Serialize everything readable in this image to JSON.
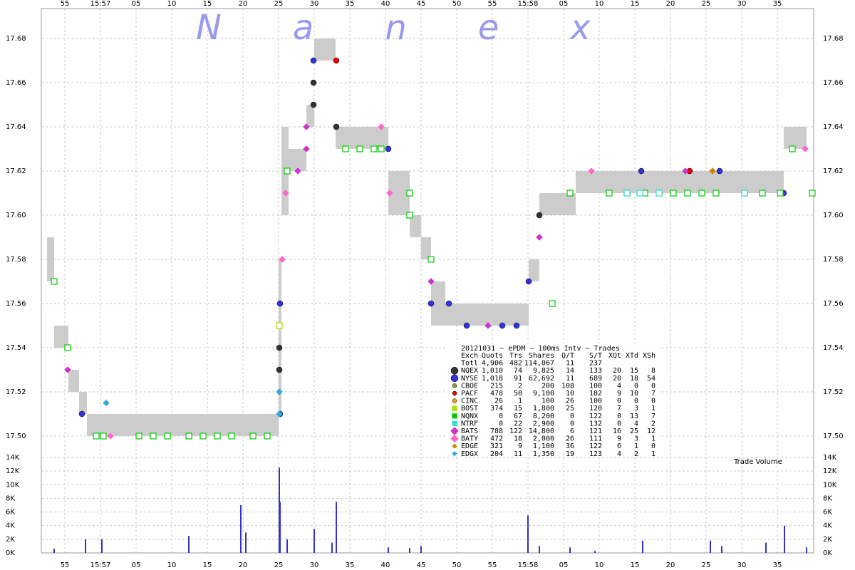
{
  "chart_data": {
    "type": "scatter",
    "title": "Nanex",
    "subtitle": "20121031 ~ ePDM ~ 100ms Intv ~ Trades",
    "annotation": "Trade Volume",
    "grid": true,
    "xlim": [
      51.7,
      160.1
    ],
    "xticks": [
      {
        "value": 55,
        "label": "55"
      },
      {
        "value": 60,
        "label": "15:57"
      },
      {
        "value": 65,
        "label": "05"
      },
      {
        "value": 70,
        "label": "10"
      },
      {
        "value": 75,
        "label": "15"
      },
      {
        "value": 80,
        "label": "20"
      },
      {
        "value": 85,
        "label": "25"
      },
      {
        "value": 90,
        "label": "30"
      },
      {
        "value": 95,
        "label": "35"
      },
      {
        "value": 100,
        "label": "40"
      },
      {
        "value": 105,
        "label": "45"
      },
      {
        "value": 110,
        "label": "50"
      },
      {
        "value": 115,
        "label": "55"
      },
      {
        "value": 120,
        "label": "15:58"
      },
      {
        "value": 125,
        "label": "05"
      },
      {
        "value": 130,
        "label": "10"
      },
      {
        "value": 135,
        "label": "15"
      },
      {
        "value": 140,
        "label": "20"
      },
      {
        "value": 145,
        "label": "25"
      },
      {
        "value": 150,
        "label": "30"
      },
      {
        "value": 155,
        "label": "35"
      }
    ],
    "ylim": [
      17.49,
      17.69
    ],
    "yticks": [
      {
        "value": 17.5,
        "label": "17.50"
      },
      {
        "value": 17.52,
        "label": "17.52"
      },
      {
        "value": 17.54,
        "label": "17.54"
      },
      {
        "value": 17.56,
        "label": "17.56"
      },
      {
        "value": 17.58,
        "label": "17.58"
      },
      {
        "value": 17.6,
        "label": "17.60"
      },
      {
        "value": 17.62,
        "label": "17.62"
      },
      {
        "value": 17.64,
        "label": "17.64"
      },
      {
        "value": 17.66,
        "label": "17.66"
      },
      {
        "value": 17.68,
        "label": "17.68"
      }
    ],
    "spread": {
      "color": "#cccccc",
      "bins": [
        52.5,
        53.5,
        55.5,
        57,
        58.1,
        85,
        85.4,
        86.4,
        88.9,
        90,
        93,
        100.4,
        103.4,
        105,
        106.4,
        108.4,
        120.1,
        121.6,
        126.7,
        155.9,
        159.1
      ],
      "low": [
        17.57,
        17.54,
        17.52,
        17.51,
        17.5,
        17.51,
        17.6,
        17.62,
        17.64,
        17.67,
        17.63,
        17.6,
        17.59,
        17.58,
        17.55,
        17.55,
        17.57,
        17.6,
        17.61,
        17.63
      ],
      "high": [
        17.59,
        17.55,
        17.53,
        17.52,
        17.51,
        17.58,
        17.64,
        17.63,
        17.65,
        17.68,
        17.64,
        17.62,
        17.6,
        17.59,
        17.57,
        17.56,
        17.58,
        17.61,
        17.62,
        17.64
      ]
    },
    "table_header": [
      "Exch",
      "Quots",
      "Trs",
      "Shares",
      "Q/T",
      "S/T",
      "XQt",
      "XTd",
      "XSh"
    ],
    "totals": {
      "name": "Totl",
      "stats": [
        "4,906",
        "482",
        "114,067",
        "11",
        "237"
      ]
    },
    "series": [
      {
        "name": "NQEX",
        "color": "#333333",
        "marker": "circle",
        "stats": [
          "1,010",
          "74",
          "9,825",
          "14",
          "133",
          "20",
          "15",
          "8"
        ],
        "x": [
          85.1,
          85.1,
          89.9,
          89.9,
          93.1,
          103.4,
          121.6
        ],
        "values": [
          17.54,
          17.53,
          17.66,
          17.65,
          17.64,
          17.6,
          17.6
        ]
      },
      {
        "name": "NYSE",
        "color": "#3333dd",
        "marker": "circle",
        "stats": [
          "1,018",
          "91",
          "62,692",
          "11",
          "689",
          "20",
          "18",
          "54"
        ],
        "x": [
          57.4,
          85.2,
          85.2,
          89.9,
          100.4,
          106.4,
          108.9,
          111.4,
          116.4,
          118.4,
          120.1,
          135.9,
          146.9,
          155.9
        ],
        "values": [
          17.51,
          17.51,
          17.56,
          17.67,
          17.63,
          17.56,
          17.56,
          17.55,
          17.55,
          17.55,
          17.57,
          17.62,
          17.62,
          17.61
        ]
      },
      {
        "name": "CBOE",
        "color": "#999933",
        "marker": "circle",
        "stats": [
          "215",
          "2",
          "200",
          "108",
          "100",
          "4",
          "0",
          "0"
        ],
        "x": [],
        "values": []
      },
      {
        "name": "PACF",
        "color": "#ee0000",
        "marker": "circle",
        "stats": [
          "478",
          "50",
          "9,100",
          "10",
          "182",
          "9",
          "10",
          "7"
        ],
        "x": [
          93.1,
          142.7
        ],
        "values": [
          17.67,
          17.62
        ]
      },
      {
        "name": "CINC",
        "color": "#ff9900",
        "marker": "circle",
        "stats": [
          "26",
          "1",
          "100",
          "26",
          "100",
          "0",
          "0",
          "0"
        ],
        "x": [],
        "values": []
      },
      {
        "name": "BOST",
        "color": "#aadd00",
        "marker": "square",
        "stats": [
          "374",
          "15",
          "1,800",
          "25",
          "120",
          "7",
          "3",
          "1"
        ],
        "x": [
          85.1
        ],
        "values": [
          17.55
        ]
      },
      {
        "name": "NQNX",
        "color": "#00cc00",
        "marker": "square",
        "stats": [
          "0",
          "67",
          "8,200",
          "0",
          "122",
          "0",
          "13",
          "7"
        ],
        "x": [
          53.5,
          55.4,
          59.4,
          60.4,
          65.4,
          67.4,
          69.4,
          72.4,
          74.4,
          76.4,
          78.4,
          81.4,
          83.4,
          86.2,
          94.4,
          96.4,
          98.4,
          99.4,
          103.4,
          103.4,
          106.4,
          123.4,
          125.9,
          131.4,
          133.9,
          136.4,
          138.4,
          140.4,
          142.4,
          144.4,
          146.4,
          150.4,
          152.9,
          155.4,
          157.1,
          159.9
        ],
        "values": [
          17.57,
          17.54,
          17.5,
          17.5,
          17.5,
          17.5,
          17.5,
          17.5,
          17.5,
          17.5,
          17.5,
          17.5,
          17.5,
          17.62,
          17.63,
          17.63,
          17.63,
          17.63,
          17.61,
          17.6,
          17.58,
          17.56,
          17.61,
          17.61,
          17.61,
          17.61,
          17.61,
          17.61,
          17.61,
          17.61,
          17.61,
          17.61,
          17.61,
          17.61,
          17.63,
          17.61
        ]
      },
      {
        "name": "NTRF",
        "color": "#33ddcc",
        "marker": "square",
        "stats": [
          "0",
          "22",
          "2,900",
          "0",
          "132",
          "0",
          "4",
          "2"
        ],
        "x": [
          133.9,
          135.7,
          138.4,
          150.4
        ],
        "values": [
          17.61,
          17.61,
          17.61,
          17.61
        ]
      },
      {
        "name": "BATS",
        "color": "#cc33cc",
        "marker": "diamond",
        "stats": [
          "788",
          "122",
          "14,800",
          "6",
          "121",
          "16",
          "25",
          "12"
        ],
        "x": [
          55.4,
          88.9,
          88.9,
          87.7,
          106.4,
          114.4,
          121.6,
          142.1
        ],
        "values": [
          17.53,
          17.64,
          17.63,
          17.62,
          17.57,
          17.55,
          17.59,
          17.62
        ]
      },
      {
        "name": "BATY",
        "color": "#ff66cc",
        "marker": "diamond",
        "stats": [
          "472",
          "18",
          "2,000",
          "26",
          "111",
          "9",
          "3",
          "1"
        ],
        "x": [
          61.4,
          85.5,
          86,
          99.4,
          100.6,
          128.9,
          158.9
        ],
        "values": [
          17.5,
          17.58,
          17.61,
          17.64,
          17.61,
          17.62,
          17.63
        ]
      },
      {
        "name": "EDGE",
        "color": "#cc8800",
        "marker": "diamond",
        "stats": [
          "321",
          "9",
          "1,100",
          "36",
          "122",
          "6",
          "1",
          "0"
        ],
        "x": [
          145.9
        ],
        "values": [
          17.62
        ]
      },
      {
        "name": "EDGX",
        "color": "#33aadd",
        "marker": "diamond",
        "stats": [
          "204",
          "11",
          "1,350",
          "19",
          "123",
          "4",
          "2",
          "1"
        ],
        "x": [
          60.8,
          85.1,
          85.1
        ],
        "values": [
          17.515,
          17.52,
          17.51
        ]
      }
    ],
    "volume": {
      "color": "#3333cc",
      "ylim": [
        0,
        14000
      ],
      "yticks": [
        {
          "value": 0,
          "label": "0K"
        },
        {
          "value": 2000,
          "label": "2K"
        },
        {
          "value": 4000,
          "label": "4K"
        },
        {
          "value": 6000,
          "label": "6K"
        },
        {
          "value": 8000,
          "label": "8K"
        },
        {
          "value": 10000,
          "label": "10K"
        },
        {
          "value": 12000,
          "label": "12K"
        },
        {
          "value": 14000,
          "label": "14K"
        }
      ],
      "x": [
        53.5,
        57.9,
        60.2,
        72.4,
        79.7,
        80.4,
        85.1,
        85.2,
        86.2,
        90,
        92.5,
        93.1,
        100.4,
        103.4,
        105,
        120,
        121.6,
        125.9,
        129.4,
        136.1,
        145.6,
        147.2,
        153.4,
        156,
        159.1
      ],
      "values": [
        600,
        2000,
        2000,
        2500,
        7000,
        3000,
        12500,
        7500,
        2000,
        3500,
        1500,
        7500,
        800,
        700,
        1000,
        5500,
        1000,
        800,
        300,
        1800,
        1800,
        1000,
        1500,
        4000,
        800
      ]
    }
  }
}
